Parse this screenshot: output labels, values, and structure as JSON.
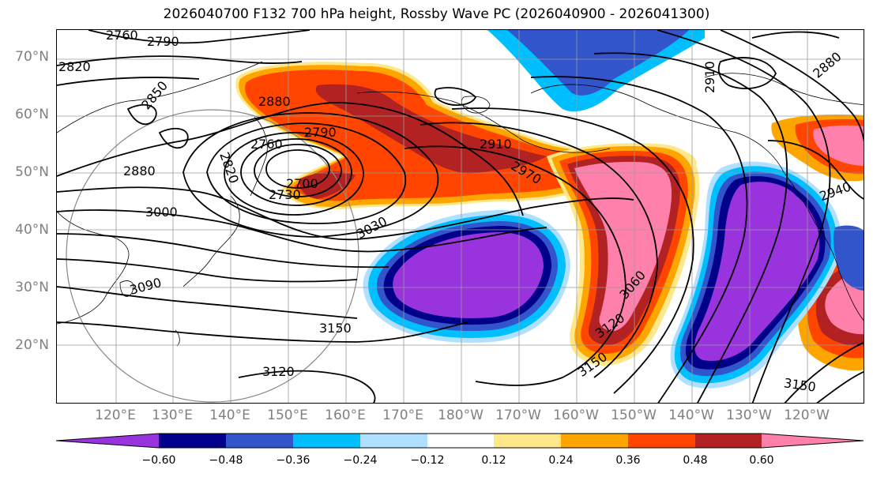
{
  "title": "2026040700 F132 700 hPa height, Rossby Wave PC (2026040900 - 2026041300)",
  "latitude_labels": [
    "70°N",
    "60°N",
    "50°N",
    "40°N",
    "30°N",
    "20°N"
  ],
  "longitude_labels": [
    "120°E",
    "130°E",
    "140°E",
    "150°E",
    "160°E",
    "170°E",
    "180°W",
    "170°W",
    "160°W",
    "150°W",
    "140°W",
    "130°W",
    "120°W"
  ],
  "contour_labels": [
    "2760",
    "2790",
    "2820",
    "2850",
    "2880",
    "2760",
    "2790",
    "2820",
    "2700",
    "2730",
    "2880",
    "3000",
    "3030",
    "2910",
    "2970",
    "3090",
    "3150",
    "3120",
    "3060",
    "3120",
    "3150",
    "3150",
    "2910",
    "2880",
    "2940"
  ],
  "colorbar": {
    "ticks": [
      "−0.60",
      "−0.48",
      "−0.36",
      "−0.24",
      "−0.12",
      "0.12",
      "0.24",
      "0.36",
      "0.48",
      "0.60"
    ],
    "colors": [
      "#9933dd",
      "#00008b",
      "#3355cc",
      "#00bfff",
      "#b0e0ff",
      "#ffffff",
      "#ffe88a",
      "#ffa500",
      "#ff4500",
      "#b22222",
      "#ff80aa"
    ]
  },
  "chart_data": {
    "type": "heatmap",
    "title": "2026040700 F132 700 hPa height, Rossby Wave PC (2026040900 - 2026041300)",
    "lat_range": [
      10,
      75
    ],
    "lon_range_east": [
      110,
      250
    ],
    "contour_interval_gpm": 30,
    "shading_levels": [
      -0.6,
      -0.48,
      -0.36,
      -0.24,
      -0.12,
      0.12,
      0.24,
      0.36,
      0.48,
      0.6
    ],
    "features": [
      {
        "label": "low",
        "lat": 50,
        "lon": 153,
        "height": 2700
      },
      {
        "label": "high",
        "lat": 20,
        "lon": 160,
        "height": 3150
      },
      {
        "label": "high",
        "lat": 17,
        "lon": 240,
        "height": 3150
      },
      {
        "label": "negative",
        "lat": 30,
        "lon": 180
      },
      {
        "label": "negative",
        "lat": 30,
        "lon": 220
      },
      {
        "label": "positive",
        "lat": 40,
        "lon": 200
      },
      {
        "label": "positive",
        "lat": 55,
        "lon": 170
      }
    ]
  }
}
